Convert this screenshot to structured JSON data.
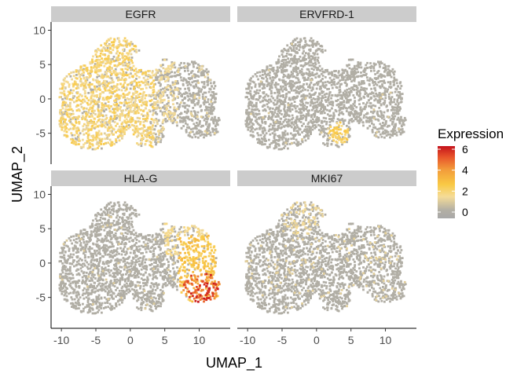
{
  "chart_data": {
    "type": "scatter",
    "xlabel": "UMAP_1",
    "ylabel": "UMAP_2",
    "xlim": [
      -11.5,
      14.5
    ],
    "ylim": [
      -9.5,
      11.2
    ],
    "x_ticks": [
      -10,
      -5,
      0,
      5,
      10
    ],
    "x_tick_labels": [
      "-10",
      "-5",
      "0",
      "5",
      "10"
    ],
    "y_ticks": [
      10,
      5,
      0,
      -5
    ],
    "y_tick_labels": [
      "10",
      "5",
      "0",
      "-5"
    ],
    "panels": [
      {
        "gene": "EGFR"
      },
      {
        "gene": "ERVFRD-1"
      },
      {
        "gene": "HLA-G"
      },
      {
        "gene": "MKI67"
      }
    ],
    "legend": {
      "title": "Expression",
      "range": [
        -0.6,
        6.3
      ],
      "ticks": [
        0,
        2,
        4,
        6
      ],
      "tick_labels": [
        "0",
        "2",
        "4",
        "6"
      ],
      "colors": [
        "#a8a8a8",
        "#f5dc98",
        "#f9c944",
        "#e8542a",
        "#c4121b"
      ],
      "placement": "right"
    },
    "grid": false
  }
}
